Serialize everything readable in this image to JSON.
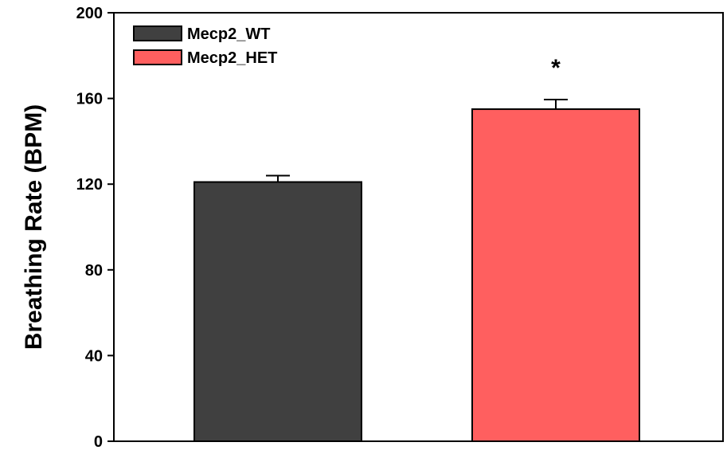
{
  "chart_data": {
    "type": "bar",
    "title": "",
    "xlabel": "",
    "ylabel": "Breathing Rate (BPM)",
    "ylim": [
      0,
      200
    ],
    "yticks": [
      0,
      40,
      80,
      120,
      160,
      200
    ],
    "ytick_labels": [
      "0",
      "40",
      "80",
      "120",
      "160",
      "200"
    ],
    "grid": false,
    "legend_position": "top-left",
    "series": [
      {
        "name": "Mecp2_WT",
        "value": 121,
        "error": 3,
        "color": "#404040"
      },
      {
        "name": "Mecp2_HET",
        "value": 155,
        "error": 4.5,
        "color": "#ff5f5f"
      }
    ],
    "annotations": [
      {
        "text": "*",
        "series": "Mecp2_HET"
      }
    ]
  }
}
